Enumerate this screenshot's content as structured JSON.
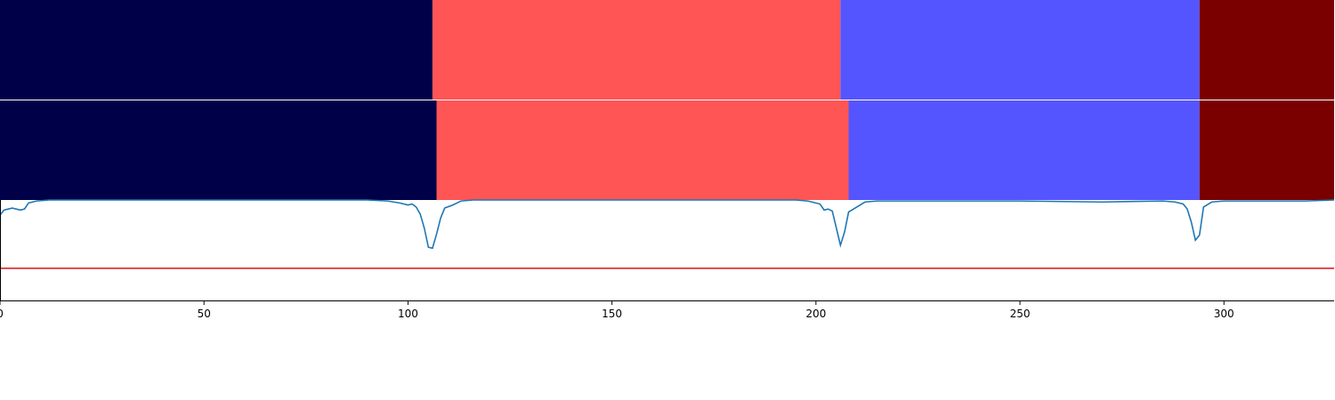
{
  "chart_data": [
    {
      "type": "segments",
      "panel": "top-band",
      "x_range": [
        0,
        327
      ],
      "segments": [
        {
          "start": 0,
          "end": 106,
          "color": "#000048"
        },
        {
          "start": 106,
          "end": 206,
          "color": "#ff5555"
        },
        {
          "start": 206,
          "end": 294,
          "color": "#5555ff"
        },
        {
          "start": 294,
          "end": 327,
          "color": "#7a0000"
        }
      ]
    },
    {
      "type": "segments",
      "panel": "middle-band",
      "x_range": [
        0,
        327
      ],
      "segments": [
        {
          "start": 0,
          "end": 107,
          "color": "#000048"
        },
        {
          "start": 107,
          "end": 208,
          "color": "#ff5555"
        },
        {
          "start": 208,
          "end": 294,
          "color": "#5555ff"
        },
        {
          "start": 294,
          "end": 327,
          "color": "#7a0000"
        }
      ]
    },
    {
      "type": "line",
      "panel": "bottom-signal",
      "xlim": [
        0,
        327
      ],
      "ylim": [
        0,
        1
      ],
      "grid": false,
      "xticks": [
        0,
        50,
        100,
        150,
        200,
        250,
        300
      ],
      "xtick_labels": [
        "0",
        "50",
        "100",
        "150",
        "200",
        "250",
        "300"
      ],
      "series": [
        {
          "color": "#1f77b4",
          "points": [
            [
              0,
              0.85
            ],
            [
              1,
              0.9
            ],
            [
              2,
              0.91
            ],
            [
              3,
              0.92
            ],
            [
              5,
              0.9
            ],
            [
              6,
              0.91
            ],
            [
              7,
              0.97
            ],
            [
              9,
              0.99
            ],
            [
              12,
              1.0
            ],
            [
              30,
              1.0
            ],
            [
              60,
              1.0
            ],
            [
              90,
              1.0
            ],
            [
              95,
              0.99
            ],
            [
              98,
              0.97
            ],
            [
              100,
              0.95
            ],
            [
              101,
              0.96
            ],
            [
              102,
              0.93
            ],
            [
              103,
              0.86
            ],
            [
              104,
              0.72
            ],
            [
              105,
              0.53
            ],
            [
              106,
              0.52
            ],
            [
              107,
              0.66
            ],
            [
              108,
              0.82
            ],
            [
              109,
              0.92
            ],
            [
              111,
              0.95
            ],
            [
              113,
              0.99
            ],
            [
              116,
              1.0
            ],
            [
              140,
              1.0
            ],
            [
              170,
              1.0
            ],
            [
              195,
              1.0
            ],
            [
              198,
              0.99
            ],
            [
              200,
              0.97
            ],
            [
              201,
              0.96
            ],
            [
              202,
              0.9
            ],
            [
              203,
              0.91
            ],
            [
              204,
              0.89
            ],
            [
              205,
              0.72
            ],
            [
              206,
              0.55
            ],
            [
              207,
              0.68
            ],
            [
              208,
              0.88
            ],
            [
              210,
              0.93
            ],
            [
              212,
              0.98
            ],
            [
              215,
              0.99
            ],
            [
              230,
              0.99
            ],
            [
              250,
              0.99
            ],
            [
              270,
              0.98
            ],
            [
              285,
              0.99
            ],
            [
              288,
              0.98
            ],
            [
              290,
              0.96
            ],
            [
              291,
              0.91
            ],
            [
              292,
              0.78
            ],
            [
              293,
              0.6
            ],
            [
              294,
              0.65
            ],
            [
              295,
              0.93
            ],
            [
              297,
              0.98
            ],
            [
              300,
              0.99
            ],
            [
              310,
              0.99
            ],
            [
              320,
              0.99
            ],
            [
              327,
              1.0
            ]
          ]
        },
        {
          "color": "#d62728",
          "points": [
            [
              0,
              0.32
            ],
            [
              327,
              0.32
            ]
          ]
        }
      ]
    }
  ]
}
